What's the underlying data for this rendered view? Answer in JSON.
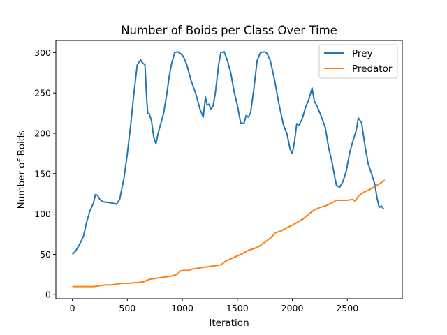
{
  "chart_data": {
    "type": "line",
    "title": "Number of Boids per Class Over Time",
    "xlabel": "Iteration",
    "ylabel": "Number of Boids",
    "xlim": [
      -150,
      3000
    ],
    "ylim": [
      -5,
      315
    ],
    "xticks": [
      0,
      500,
      1000,
      1500,
      2000,
      2500
    ],
    "yticks": [
      0,
      50,
      100,
      150,
      200,
      250,
      300
    ],
    "grid": false,
    "legend_position": "top-right",
    "series": [
      {
        "name": "Prey",
        "color": "#1f77b4",
        "points": [
          [
            0,
            50
          ],
          [
            30,
            54
          ],
          [
            60,
            61
          ],
          [
            100,
            72
          ],
          [
            130,
            90
          ],
          [
            160,
            104
          ],
          [
            190,
            113
          ],
          [
            210,
            124
          ],
          [
            230,
            123
          ],
          [
            250,
            118
          ],
          [
            280,
            115
          ],
          [
            340,
            114
          ],
          [
            380,
            113
          ],
          [
            400,
            112
          ],
          [
            430,
            118
          ],
          [
            470,
            145
          ],
          [
            500,
            175
          ],
          [
            530,
            210
          ],
          [
            560,
            250
          ],
          [
            590,
            285
          ],
          [
            620,
            291
          ],
          [
            640,
            287
          ],
          [
            660,
            285
          ],
          [
            675,
            245
          ],
          [
            685,
            225
          ],
          [
            700,
            224
          ],
          [
            720,
            215
          ],
          [
            740,
            195
          ],
          [
            760,
            187
          ],
          [
            780,
            200
          ],
          [
            800,
            210
          ],
          [
            830,
            225
          ],
          [
            860,
            250
          ],
          [
            880,
            270
          ],
          [
            900,
            285
          ],
          [
            930,
            300
          ],
          [
            960,
            301
          ],
          [
            990,
            298
          ],
          [
            1010,
            295
          ],
          [
            1040,
            285
          ],
          [
            1080,
            265
          ],
          [
            1120,
            250
          ],
          [
            1160,
            230
          ],
          [
            1190,
            220
          ],
          [
            1210,
            245
          ],
          [
            1225,
            235
          ],
          [
            1240,
            236
          ],
          [
            1260,
            230
          ],
          [
            1280,
            234
          ],
          [
            1300,
            250
          ],
          [
            1330,
            285
          ],
          [
            1350,
            300
          ],
          [
            1380,
            301
          ],
          [
            1410,
            290
          ],
          [
            1440,
            275
          ],
          [
            1470,
            252
          ],
          [
            1500,
            235
          ],
          [
            1530,
            213
          ],
          [
            1560,
            212
          ],
          [
            1580,
            222
          ],
          [
            1600,
            220
          ],
          [
            1620,
            225
          ],
          [
            1650,
            255
          ],
          [
            1680,
            290
          ],
          [
            1710,
            300
          ],
          [
            1750,
            301
          ],
          [
            1770,
            299
          ],
          [
            1800,
            290
          ],
          [
            1840,
            265
          ],
          [
            1880,
            235
          ],
          [
            1920,
            210
          ],
          [
            1950,
            200
          ],
          [
            1980,
            180
          ],
          [
            2000,
            175
          ],
          [
            2020,
            190
          ],
          [
            2040,
            212
          ],
          [
            2060,
            210
          ],
          [
            2090,
            218
          ],
          [
            2120,
            232
          ],
          [
            2150,
            242
          ],
          [
            2180,
            256
          ],
          [
            2200,
            240
          ],
          [
            2230,
            232
          ],
          [
            2260,
            222
          ],
          [
            2300,
            207
          ],
          [
            2330,
            182
          ],
          [
            2360,
            165
          ],
          [
            2380,
            150
          ],
          [
            2400,
            136
          ],
          [
            2430,
            133
          ],
          [
            2460,
            140
          ],
          [
            2490,
            153
          ],
          [
            2520,
            175
          ],
          [
            2550,
            190
          ],
          [
            2580,
            203
          ],
          [
            2600,
            219
          ],
          [
            2630,
            213
          ],
          [
            2660,
            185
          ],
          [
            2690,
            162
          ],
          [
            2720,
            150
          ],
          [
            2750,
            137
          ],
          [
            2770,
            120
          ],
          [
            2790,
            108
          ],
          [
            2810,
            110
          ],
          [
            2830,
            106
          ]
        ]
      },
      {
        "name": "Predator",
        "color": "#ff7f0e",
        "points": [
          [
            0,
            10
          ],
          [
            200,
            10
          ],
          [
            240,
            11
          ],
          [
            300,
            12
          ],
          [
            350,
            12
          ],
          [
            400,
            13
          ],
          [
            450,
            14
          ],
          [
            500,
            14
          ],
          [
            600,
            15
          ],
          [
            650,
            16
          ],
          [
            700,
            19
          ],
          [
            750,
            20
          ],
          [
            800,
            21
          ],
          [
            850,
            22
          ],
          [
            900,
            23
          ],
          [
            950,
            25
          ],
          [
            980,
            29
          ],
          [
            1000,
            30
          ],
          [
            1050,
            30
          ],
          [
            1100,
            32
          ],
          [
            1150,
            33
          ],
          [
            1200,
            34
          ],
          [
            1250,
            35
          ],
          [
            1300,
            36
          ],
          [
            1350,
            37
          ],
          [
            1400,
            42
          ],
          [
            1450,
            45
          ],
          [
            1500,
            48
          ],
          [
            1550,
            51
          ],
          [
            1600,
            55
          ],
          [
            1650,
            57
          ],
          [
            1700,
            60
          ],
          [
            1750,
            65
          ],
          [
            1800,
            70
          ],
          [
            1850,
            77
          ],
          [
            1900,
            79
          ],
          [
            1950,
            83
          ],
          [
            2000,
            86
          ],
          [
            2050,
            90
          ],
          [
            2100,
            94
          ],
          [
            2150,
            100
          ],
          [
            2200,
            105
          ],
          [
            2250,
            108
          ],
          [
            2300,
            110
          ],
          [
            2350,
            113
          ],
          [
            2400,
            117
          ],
          [
            2450,
            117
          ],
          [
            2500,
            117
          ],
          [
            2550,
            118
          ],
          [
            2570,
            116
          ],
          [
            2600,
            122
          ],
          [
            2650,
            127
          ],
          [
            2700,
            130
          ],
          [
            2750,
            134
          ],
          [
            2800,
            138
          ],
          [
            2840,
            142
          ]
        ]
      }
    ]
  }
}
